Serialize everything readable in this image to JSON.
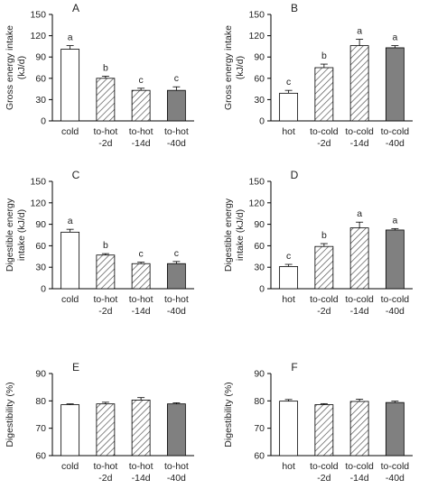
{
  "colors": {
    "axis": "#000000",
    "solid_fill": "#808080",
    "open_fill": "#ffffff",
    "hatch_stroke": "#555555"
  },
  "chart_data": [
    {
      "panel": "A",
      "type": "bar",
      "ylabel_lines": [
        "Gross energy intake",
        "(kJ/d)"
      ],
      "ylim": [
        0,
        150
      ],
      "yticks": [
        0,
        30,
        60,
        90,
        120,
        150
      ],
      "categories": [
        [
          "cold"
        ],
        [
          "to-hot",
          "-2d"
        ],
        [
          "to-hot",
          "-14d"
        ],
        [
          "to-hot",
          "-40d"
        ]
      ],
      "fills": [
        "open",
        "hatch",
        "hatch",
        "solid"
      ],
      "values": [
        101,
        60,
        43,
        43
      ],
      "errors": [
        5,
        3,
        3,
        5
      ],
      "letters": [
        "a",
        "b",
        "c",
        "c"
      ]
    },
    {
      "panel": "B",
      "type": "bar",
      "ylabel_lines": [
        "Gross energy intake",
        "(kJ/d)"
      ],
      "ylim": [
        0,
        150
      ],
      "yticks": [
        0,
        30,
        60,
        90,
        120,
        150
      ],
      "categories": [
        [
          "hot"
        ],
        [
          "to-cold",
          "-2d"
        ],
        [
          "to-cold",
          "-14d"
        ],
        [
          "to-cold",
          "-40d"
        ]
      ],
      "fills": [
        "open",
        "hatch",
        "hatch",
        "solid"
      ],
      "values": [
        39,
        75,
        106,
        103
      ],
      "errors": [
        4,
        5,
        9,
        3
      ],
      "letters": [
        "c",
        "b",
        "a",
        "a"
      ]
    },
    {
      "panel": "C",
      "type": "bar",
      "ylabel_lines": [
        "Digestible energy",
        "intake (kJ/d)"
      ],
      "ylim": [
        0,
        150
      ],
      "yticks": [
        0,
        30,
        60,
        90,
        120,
        150
      ],
      "categories": [
        [
          "cold"
        ],
        [
          "to-hot",
          "-2d"
        ],
        [
          "to-hot",
          "-14d"
        ],
        [
          "to-hot",
          "-40d"
        ]
      ],
      "fills": [
        "open",
        "hatch",
        "hatch",
        "solid"
      ],
      "values": [
        79,
        47,
        35,
        35
      ],
      "errors": [
        4,
        2,
        2,
        3
      ],
      "letters": [
        "a",
        "b",
        "c",
        "c"
      ]
    },
    {
      "panel": "D",
      "type": "bar",
      "ylabel_lines": [
        "Digestible energy",
        "intake (kJ/d)"
      ],
      "ylim": [
        0,
        150
      ],
      "yticks": [
        0,
        30,
        60,
        90,
        120,
        150
      ],
      "categories": [
        [
          "hot"
        ],
        [
          "to-cold",
          "-2d"
        ],
        [
          "to-cold",
          "-14d"
        ],
        [
          "to-cold",
          "-40d"
        ]
      ],
      "fills": [
        "open",
        "hatch",
        "hatch",
        "solid"
      ],
      "values": [
        31,
        59,
        85,
        82
      ],
      "errors": [
        3,
        4,
        8,
        2
      ],
      "letters": [
        "c",
        "b",
        "a",
        "a"
      ]
    },
    {
      "panel": "E",
      "type": "bar",
      "ylabel_lines": [
        "Digestibility (%)"
      ],
      "ylim": [
        60,
        90
      ],
      "yticks": [
        60,
        70,
        80,
        90
      ],
      "categories": [
        [
          "cold"
        ],
        [
          "to-hot",
          "-2d"
        ],
        [
          "to-hot",
          "-14d"
        ],
        [
          "to-hot",
          "-40d"
        ]
      ],
      "fills": [
        "open",
        "hatch",
        "hatch",
        "solid"
      ],
      "values": [
        78.6,
        78.9,
        80.3,
        78.9
      ],
      "errors": [
        0.3,
        0.6,
        0.9,
        0.4
      ],
      "letters": [
        "",
        "",
        "",
        ""
      ]
    },
    {
      "panel": "F",
      "type": "bar",
      "ylabel_lines": [
        "Digestibility (%)"
      ],
      "ylim": [
        60,
        90
      ],
      "yticks": [
        60,
        70,
        80,
        90
      ],
      "categories": [
        [
          "hot"
        ],
        [
          "to-cold",
          "-2d"
        ],
        [
          "to-cold",
          "-14d"
        ],
        [
          "to-cold",
          "-40d"
        ]
      ],
      "fills": [
        "open",
        "hatch",
        "hatch",
        "solid"
      ],
      "values": [
        79.9,
        78.6,
        79.8,
        79.4
      ],
      "errors": [
        0.6,
        0.4,
        0.8,
        0.5
      ],
      "letters": [
        "",
        "",
        "",
        ""
      ]
    }
  ]
}
